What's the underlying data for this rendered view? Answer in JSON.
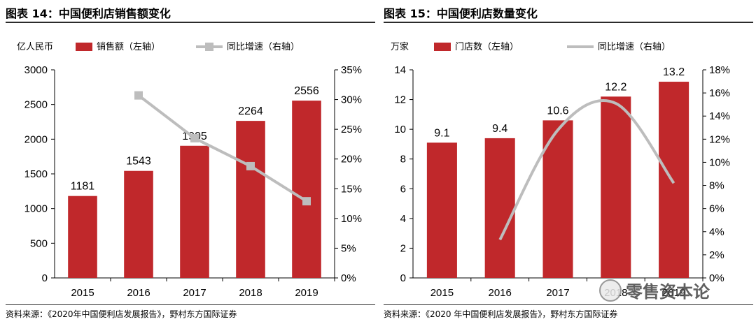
{
  "charts": [
    {
      "title": "图表 14：中国便利店销售额变化",
      "source": "资料来源：《2020年中国便利店发展报告》，野村东方国际证券",
      "legend": {
        "unit": "亿人民币",
        "bar": "销售额（左轴）",
        "line": "同比增速（右轴）"
      }
    },
    {
      "title": "图表 15：中国便利店数量变化",
      "source": "资料来源：《2020 年中国便利店发展报告》，野村东方国际证券",
      "legend": {
        "unit": "万家",
        "bar": "门店数（左轴）",
        "line": "同比增速（右轴）"
      }
    }
  ],
  "watermark": "零售资本论",
  "colors": {
    "bar": "#C0282B",
    "line": "#BDBDBD",
    "axis": "#000000"
  },
  "chart_data": [
    {
      "type": "bar",
      "categories": [
        "2015",
        "2016",
        "2017",
        "2018",
        "2019"
      ],
      "series": [
        {
          "name": "销售额（左轴）",
          "axis": "left",
          "values": [
            1181,
            1543,
            1905,
            2264,
            2556
          ]
        },
        {
          "name": "同比增速（右轴）",
          "axis": "right",
          "type": "line",
          "marker": "square",
          "values": [
            null,
            30.7,
            23.5,
            18.8,
            12.9
          ]
        }
      ],
      "data_labels": [
        "1181",
        "1543",
        "1905",
        "2264",
        "2556"
      ],
      "ylim_left": [
        0,
        3000
      ],
      "yticks_left": [
        "0",
        "500",
        "1000",
        "1500",
        "2000",
        "2500",
        "3000"
      ],
      "ylim_right": [
        0,
        35
      ],
      "yticks_right": [
        "0%",
        "5%",
        "10%",
        "15%",
        "20%",
        "25%",
        "30%",
        "35%"
      ],
      "legend_position": "top",
      "grid": false
    },
    {
      "type": "bar",
      "categories": [
        "2015",
        "2016",
        "2017",
        "2018",
        "2019"
      ],
      "series": [
        {
          "name": "门店数（左轴）",
          "axis": "left",
          "values": [
            9.1,
            9.4,
            10.6,
            12.2,
            13.2
          ]
        },
        {
          "name": "同比增速（右轴）",
          "axis": "right",
          "type": "line",
          "smooth": true,
          "values": [
            null,
            3.3,
            12.8,
            15.1,
            8.2
          ]
        }
      ],
      "data_labels": [
        "9.1",
        "9.4",
        "10.6",
        "12.2",
        "13.2"
      ],
      "ylim_left": [
        0,
        14
      ],
      "yticks_left": [
        "0",
        "2",
        "4",
        "6",
        "8",
        "10",
        "12",
        "14"
      ],
      "ylim_right": [
        0,
        18
      ],
      "yticks_right": [
        "0%",
        "2%",
        "4%",
        "6%",
        "8%",
        "10%",
        "12%",
        "14%",
        "16%",
        "18%"
      ],
      "legend_position": "top",
      "grid": false
    }
  ]
}
